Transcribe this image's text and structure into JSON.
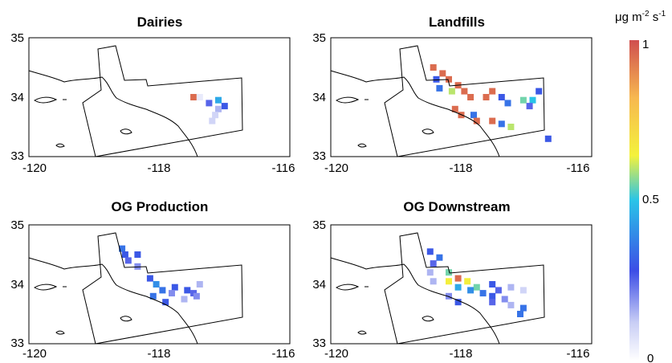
{
  "colorbar": {
    "unit_base": "μg m",
    "unit_exp1": "-2",
    "unit_mid": " s",
    "unit_exp2": "-1",
    "ticks": [
      "1",
      "0.5",
      "0"
    ],
    "range": [
      0,
      1
    ],
    "stops": [
      "#ffffff",
      "#c8cdf5",
      "#3d4de6",
      "#29c4e8",
      "#f4f23c",
      "#f7b84f",
      "#d04f4f"
    ]
  },
  "panels": [
    {
      "title": "Dairies",
      "yticks": [
        "35",
        "34",
        "33"
      ],
      "xticks": [
        "-120",
        "-118",
        "-116"
      ],
      "cells": [
        [
          34.0,
          -117.55,
          0.95
        ],
        [
          34.0,
          -117.45,
          0.05
        ],
        [
          33.9,
          -117.3,
          0.25
        ],
        [
          33.95,
          -117.15,
          0.45
        ],
        [
          33.85,
          -117.05,
          0.3
        ],
        [
          33.8,
          -117.15,
          0.15
        ],
        [
          33.7,
          -117.2,
          0.1
        ],
        [
          33.6,
          -117.25,
          0.1
        ]
      ]
    },
    {
      "title": "Landfills",
      "yticks": [
        "35",
        "34",
        "33"
      ],
      "xticks": [
        "-120",
        "-118",
        "-116"
      ],
      "cells": [
        [
          34.5,
          -118.55,
          0.95
        ],
        [
          34.4,
          -118.4,
          0.95
        ],
        [
          34.3,
          -118.3,
          0.95
        ],
        [
          34.2,
          -118.15,
          0.95
        ],
        [
          34.15,
          -118.45,
          0.35
        ],
        [
          34.1,
          -118.25,
          0.6
        ],
        [
          34.1,
          -118.05,
          0.95
        ],
        [
          34.0,
          -117.95,
          0.95
        ],
        [
          34.0,
          -117.7,
          0.95
        ],
        [
          34.1,
          -117.6,
          0.95
        ],
        [
          34.0,
          -117.45,
          0.3
        ],
        [
          33.9,
          -117.35,
          0.35
        ],
        [
          33.95,
          -117.1,
          0.55
        ],
        [
          33.95,
          -116.95,
          0.5
        ],
        [
          34.1,
          -116.85,
          0.3
        ],
        [
          33.8,
          -118.2,
          0.95
        ],
        [
          33.7,
          -118.1,
          0.95
        ],
        [
          33.7,
          -117.9,
          0.35
        ],
        [
          33.6,
          -117.85,
          0.95
        ],
        [
          33.6,
          -117.6,
          0.95
        ],
        [
          33.55,
          -117.45,
          0.35
        ],
        [
          33.5,
          -117.3,
          0.6
        ],
        [
          33.3,
          -116.7,
          0.3
        ],
        [
          34.3,
          -118.5,
          0.3
        ],
        [
          33.85,
          -117.0,
          0.25
        ]
      ]
    },
    {
      "title": "OG Production",
      "yticks": [
        "35",
        "34",
        "33"
      ],
      "xticks": [
        "-120",
        "-118",
        "-116"
      ],
      "cells": [
        [
          34.6,
          -118.7,
          0.35
        ],
        [
          34.5,
          -118.65,
          0.3
        ],
        [
          34.5,
          -118.45,
          0.3
        ],
        [
          34.4,
          -118.6,
          0.25
        ],
        [
          34.3,
          -118.45,
          0.2
        ],
        [
          34.1,
          -118.25,
          0.3
        ],
        [
          34.0,
          -118.15,
          0.4
        ],
        [
          33.9,
          -118.05,
          0.35
        ],
        [
          33.95,
          -117.85,
          0.3
        ],
        [
          33.85,
          -117.9,
          0.2
        ],
        [
          33.8,
          -118.2,
          0.35
        ],
        [
          33.7,
          -118.0,
          0.3
        ],
        [
          33.9,
          -117.65,
          0.3
        ],
        [
          33.85,
          -117.55,
          0.25
        ],
        [
          33.8,
          -117.5,
          0.2
        ],
        [
          33.75,
          -117.7,
          0.15
        ],
        [
          34.0,
          -117.45,
          0.15
        ]
      ]
    },
    {
      "title": "OG Downstream",
      "yticks": [
        "35",
        "34",
        "33"
      ],
      "xticks": [
        "-120",
        "-118",
        "-116"
      ],
      "cells": [
        [
          34.55,
          -118.6,
          0.3
        ],
        [
          34.45,
          -118.45,
          0.35
        ],
        [
          34.35,
          -118.55,
          0.25
        ],
        [
          34.2,
          -118.3,
          0.55
        ],
        [
          34.1,
          -118.15,
          0.95
        ],
        [
          34.05,
          -118.3,
          0.65
        ],
        [
          34.05,
          -118.0,
          0.65
        ],
        [
          33.95,
          -118.15,
          0.45
        ],
        [
          33.95,
          -117.85,
          0.55
        ],
        [
          33.9,
          -117.95,
          0.4
        ],
        [
          33.85,
          -117.75,
          0.35
        ],
        [
          34.0,
          -117.6,
          0.3
        ],
        [
          33.9,
          -117.5,
          0.25
        ],
        [
          33.8,
          -117.6,
          0.3
        ],
        [
          33.75,
          -117.4,
          0.2
        ],
        [
          33.7,
          -117.6,
          0.25
        ],
        [
          33.65,
          -117.3,
          0.15
        ],
        [
          33.6,
          -117.1,
          0.35
        ],
        [
          33.5,
          -117.15,
          0.35
        ],
        [
          33.95,
          -117.3,
          0.15
        ],
        [
          33.9,
          -117.1,
          0.1
        ],
        [
          34.2,
          -118.6,
          0.15
        ],
        [
          34.05,
          -118.55,
          0.15
        ],
        [
          33.8,
          -118.3,
          0.2
        ],
        [
          33.7,
          -118.15,
          0.3
        ]
      ]
    }
  ]
}
